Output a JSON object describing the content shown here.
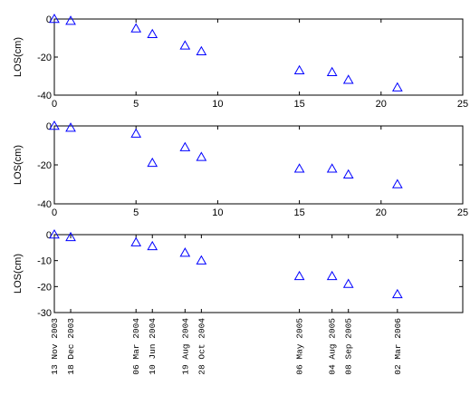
{
  "chart_data": [
    {
      "type": "scatter",
      "title": "",
      "xlabel": "",
      "ylabel": "LOS(cm)",
      "xlim": [
        0,
        25
      ],
      "ylim": [
        -40,
        0
      ],
      "xticks": [
        "0",
        "5",
        "10",
        "15",
        "20",
        "25"
      ],
      "yticks": [
        "0",
        "-20",
        "-40"
      ],
      "marker": "triangle",
      "color": "#0000ff",
      "grid": false,
      "x": [
        0,
        1,
        5,
        6,
        8,
        9,
        15,
        17,
        18,
        21
      ],
      "y": [
        0,
        -1,
        -5,
        -8,
        -14,
        -17,
        -27,
        -28,
        -32,
        -36
      ]
    },
    {
      "type": "scatter",
      "title": "",
      "xlabel": "",
      "ylabel": "LOS(cm)",
      "xlim": [
        0,
        25
      ],
      "ylim": [
        -40,
        0
      ],
      "xticks": [
        "0",
        "5",
        "10",
        "15",
        "20",
        "25"
      ],
      "yticks": [
        "0",
        "-20",
        "-40"
      ],
      "marker": "triangle",
      "color": "#0000ff",
      "grid": false,
      "x": [
        0,
        1,
        5,
        6,
        8,
        9,
        15,
        17,
        18,
        21
      ],
      "y": [
        0,
        -1,
        -4,
        -19,
        -11,
        -16,
        -22,
        -22,
        -25,
        -30
      ]
    },
    {
      "type": "scatter",
      "title": "",
      "xlabel": "",
      "ylabel": "LOS(cm)",
      "xlim": [
        0,
        25
      ],
      "ylim": [
        -30,
        0
      ],
      "xticks": [
        "13 Nov 2003",
        "18 Dec 2003",
        "06 Mar 2004",
        "10 Jun 2004",
        "19 Aug 2004",
        "28 Oct 2004",
        "06 May 2005",
        "04 Aug 2005",
        "08 Sep 2005",
        "02 Mar 2006"
      ],
      "yticks": [
        "0",
        "-10",
        "-20",
        "-30"
      ],
      "marker": "triangle",
      "color": "#0000ff",
      "grid": false,
      "x": [
        "13 Nov 2003",
        "18 Dec 2003",
        "06 Mar 2004",
        "10 Jun 2004",
        "19 Aug 2004",
        "28 Oct 2004",
        "06 May 2005",
        "04 Aug 2005",
        "08 Sep 2005",
        "02 Mar 2006"
      ],
      "y": [
        0,
        -1,
        -3,
        -4.5,
        -7,
        -10,
        -16,
        -16,
        -19,
        -23
      ]
    }
  ]
}
